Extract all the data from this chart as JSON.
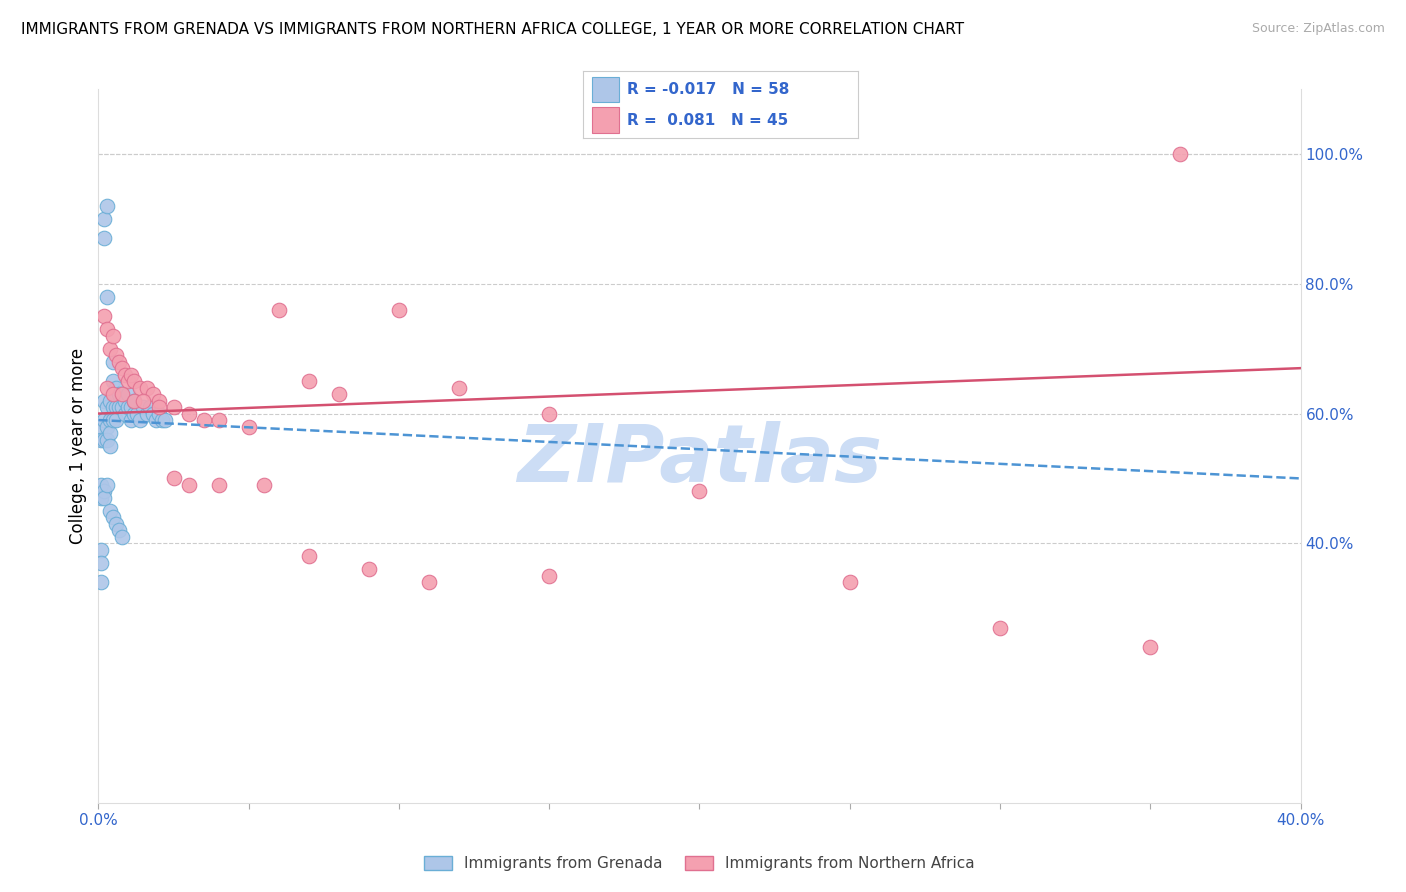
{
  "title": "IMMIGRANTS FROM GRENADA VS IMMIGRANTS FROM NORTHERN AFRICA COLLEGE, 1 YEAR OR MORE CORRELATION CHART",
  "source": "Source: ZipAtlas.com",
  "ylabel_left": "College, 1 year or more",
  "x_min": 0.0,
  "x_max": 0.4,
  "y_min": 0.0,
  "y_max": 1.1,
  "right_y_ticks": [
    0.4,
    0.6,
    0.8,
    1.0
  ],
  "right_y_labels": [
    "40.0%",
    "60.0%",
    "80.0%",
    "100.0%"
  ],
  "bottom_x_ticks": [
    0.0,
    0.05,
    0.1,
    0.15,
    0.2,
    0.25,
    0.3,
    0.35,
    0.4
  ],
  "bottom_x_labels": [
    "0.0%",
    "",
    "",
    "",
    "",
    "",
    "",
    "",
    "40.0%"
  ],
  "grenada_color": "#aec6e8",
  "grenada_edge": "#6aaed6",
  "northern_africa_color": "#f4a0b0",
  "northern_africa_edge": "#e07090",
  "trend_grenada_color": "#4d94d4",
  "trend_northern_africa_color": "#d45070",
  "watermark": "ZIPatlas",
  "watermark_color": "#ccddf5",
  "grenada_x": [
    0.001,
    0.001,
    0.002,
    0.002,
    0.002,
    0.002,
    0.002,
    0.003,
    0.003,
    0.003,
    0.003,
    0.003,
    0.004,
    0.004,
    0.004,
    0.004,
    0.005,
    0.005,
    0.005,
    0.005,
    0.006,
    0.006,
    0.006,
    0.007,
    0.007,
    0.008,
    0.008,
    0.009,
    0.009,
    0.01,
    0.01,
    0.011,
    0.011,
    0.012,
    0.012,
    0.013,
    0.014,
    0.015,
    0.016,
    0.017,
    0.018,
    0.019,
    0.02,
    0.021,
    0.022,
    0.001,
    0.001,
    0.002,
    0.002,
    0.003,
    0.004,
    0.005,
    0.006,
    0.007,
    0.008,
    0.001,
    0.001,
    0.001
  ],
  "grenada_y": [
    0.58,
    0.56,
    0.9,
    0.87,
    0.62,
    0.59,
    0.56,
    0.92,
    0.78,
    0.61,
    0.58,
    0.56,
    0.62,
    0.59,
    0.57,
    0.55,
    0.68,
    0.65,
    0.61,
    0.59,
    0.64,
    0.61,
    0.59,
    0.63,
    0.61,
    0.63,
    0.61,
    0.62,
    0.6,
    0.63,
    0.61,
    0.61,
    0.59,
    0.62,
    0.6,
    0.6,
    0.59,
    0.61,
    0.6,
    0.61,
    0.6,
    0.59,
    0.6,
    0.59,
    0.59,
    0.49,
    0.47,
    0.48,
    0.47,
    0.49,
    0.45,
    0.44,
    0.43,
    0.42,
    0.41,
    0.39,
    0.37,
    0.34
  ],
  "northern_africa_x": [
    0.002,
    0.003,
    0.004,
    0.005,
    0.006,
    0.007,
    0.008,
    0.009,
    0.01,
    0.011,
    0.012,
    0.014,
    0.016,
    0.018,
    0.02,
    0.025,
    0.03,
    0.035,
    0.04,
    0.05,
    0.06,
    0.07,
    0.08,
    0.1,
    0.12,
    0.15,
    0.003,
    0.005,
    0.008,
    0.012,
    0.015,
    0.02,
    0.025,
    0.03,
    0.04,
    0.055,
    0.07,
    0.09,
    0.11,
    0.15,
    0.2,
    0.25,
    0.3,
    0.35,
    0.36
  ],
  "northern_africa_y": [
    0.75,
    0.73,
    0.7,
    0.72,
    0.69,
    0.68,
    0.67,
    0.66,
    0.65,
    0.66,
    0.65,
    0.64,
    0.64,
    0.63,
    0.62,
    0.61,
    0.6,
    0.59,
    0.59,
    0.58,
    0.76,
    0.65,
    0.63,
    0.76,
    0.64,
    0.6,
    0.64,
    0.63,
    0.63,
    0.62,
    0.62,
    0.61,
    0.5,
    0.49,
    0.49,
    0.49,
    0.38,
    0.36,
    0.34,
    0.35,
    0.48,
    0.34,
    0.27,
    0.24,
    1.0
  ],
  "grenada_trend_x": [
    0.0,
    0.4
  ],
  "grenada_trend_y": [
    0.59,
    0.5
  ],
  "northern_africa_trend_x": [
    0.0,
    0.4
  ],
  "northern_africa_trend_y": [
    0.6,
    0.67
  ]
}
